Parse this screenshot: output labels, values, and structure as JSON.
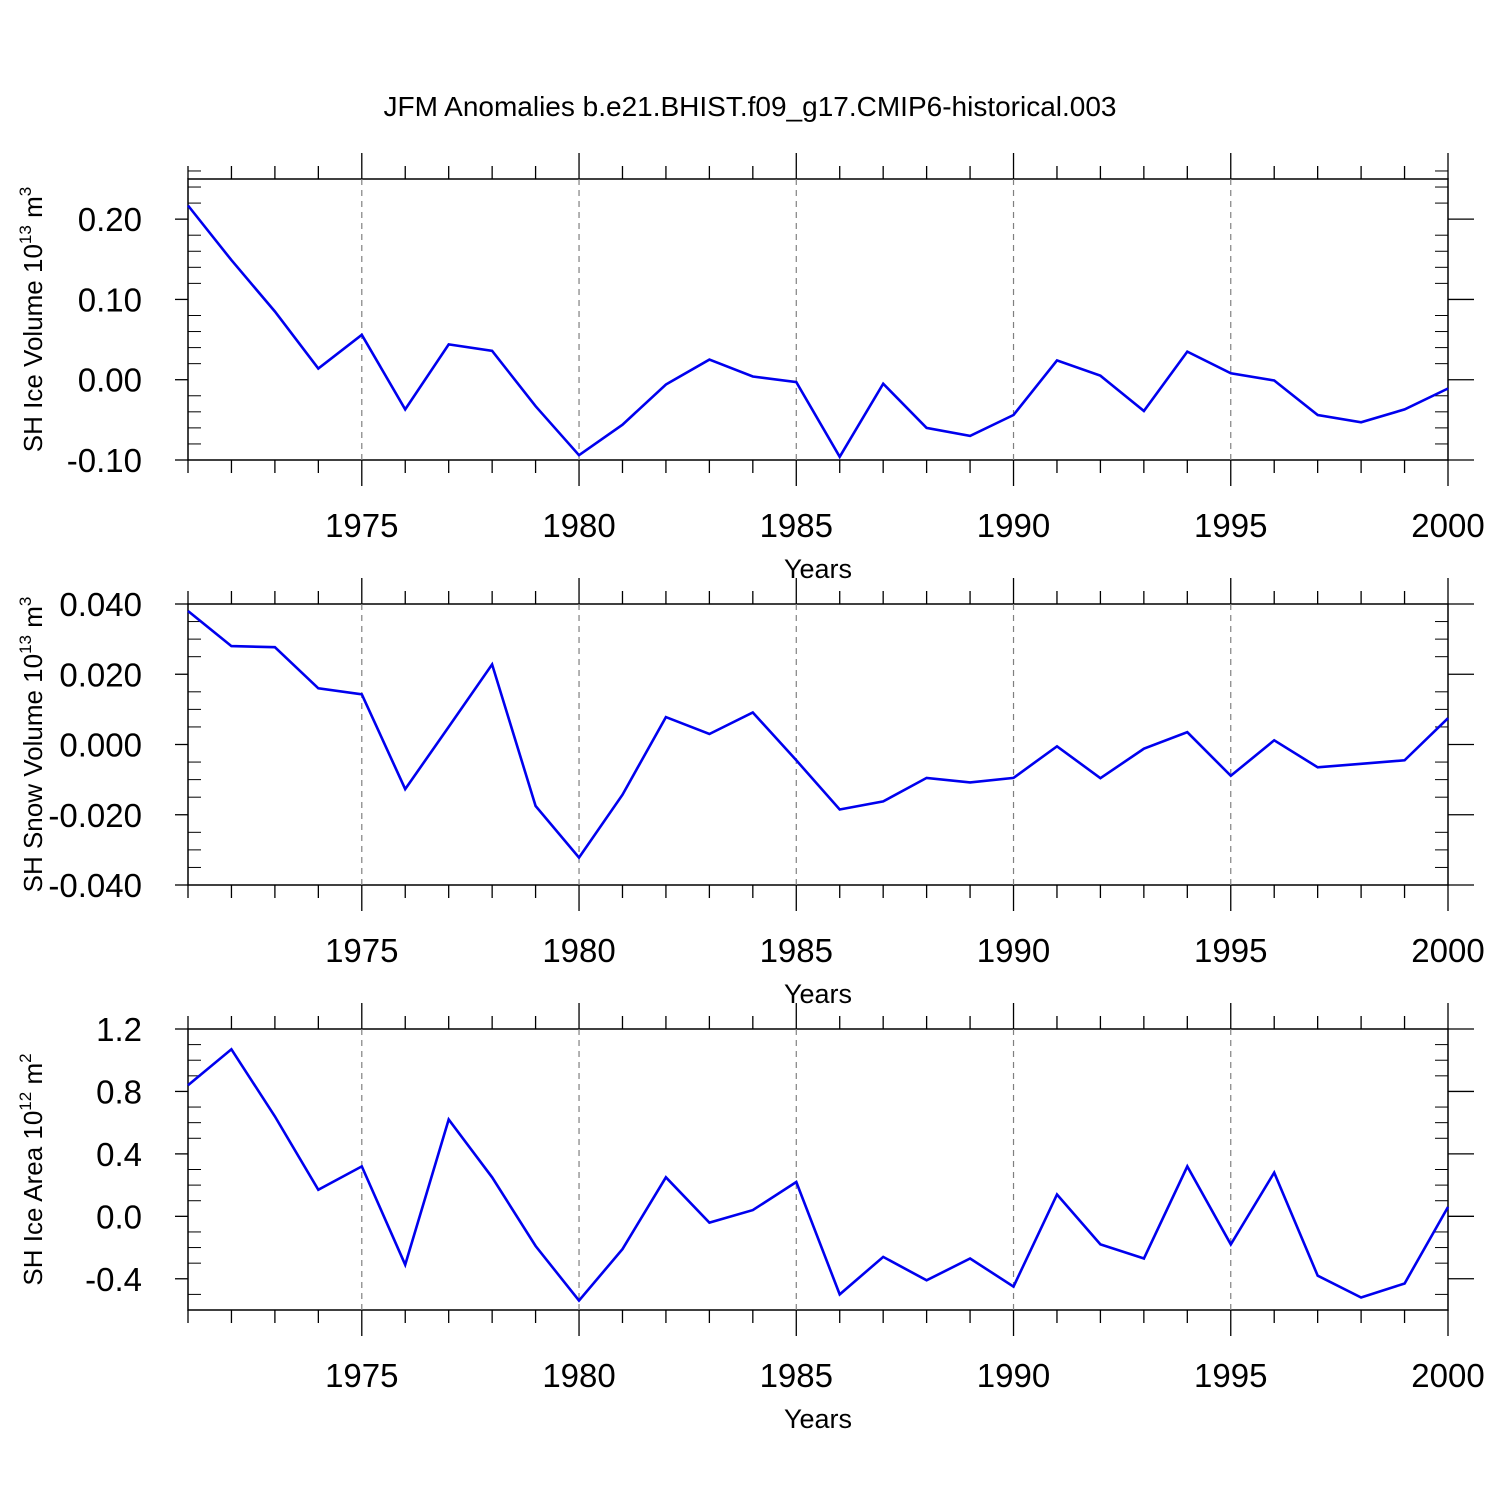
{
  "page_title": "JFM Anomalies b.e21.BHIST.f09_g17.CMIP6-historical.003",
  "colors": {
    "line": "#0000ee",
    "axis": "#000000",
    "grid": "#808080",
    "background": "#ffffff"
  },
  "chart_data": [
    {
      "type": "line",
      "title": "",
      "xlabel": "Years",
      "ylabel_parts": [
        "SH Ice Volume 10",
        "13",
        " m",
        "3"
      ],
      "xlim": [
        1971,
        2000
      ],
      "ylim": [
        -0.1,
        0.25
      ],
      "x_major_ticks": [
        1975,
        1980,
        1985,
        1990,
        1995,
        2000
      ],
      "x_tick_labels": [
        "1975",
        "1980",
        "1985",
        "1990",
        "1995",
        "2000"
      ],
      "y_major_ticks": [
        -0.1,
        0.0,
        0.1,
        0.2
      ],
      "y_tick_labels": [
        "-0.10",
        "0.00",
        "0.10",
        "0.20"
      ],
      "y_minor_step": 0.02,
      "grid": "vertical dashed at major x ticks",
      "series": [
        {
          "name": "SH Ice Volume",
          "x": [
            1971,
            1972,
            1973,
            1974,
            1975,
            1976,
            1977,
            1978,
            1979,
            1980,
            1981,
            1982,
            1983,
            1984,
            1985,
            1986,
            1987,
            1988,
            1989,
            1990,
            1991,
            1992,
            1993,
            1994,
            1995,
            1996,
            1997,
            1998,
            1999,
            2000
          ],
          "values": [
            0.217,
            0.149,
            0.085,
            0.014,
            0.056,
            -0.037,
            0.044,
            0.036,
            -0.033,
            -0.094,
            -0.056,
            -0.006,
            0.025,
            0.004,
            -0.003,
            -0.096,
            -0.005,
            -0.06,
            -0.07,
            -0.044,
            0.024,
            0.005,
            -0.039,
            0.035,
            0.008,
            -0.001,
            -0.044,
            -0.053,
            -0.037,
            -0.011
          ]
        }
      ]
    },
    {
      "type": "line",
      "title": "",
      "xlabel": "Years",
      "ylabel_parts": [
        "SH Snow Volume 10",
        "13",
        " m",
        "3"
      ],
      "xlim": [
        1971,
        2000
      ],
      "ylim": [
        -0.04,
        0.04
      ],
      "x_major_ticks": [
        1975,
        1980,
        1985,
        1990,
        1995,
        2000
      ],
      "x_tick_labels": [
        "1975",
        "1980",
        "1985",
        "1990",
        "1995",
        "2000"
      ],
      "y_major_ticks": [
        -0.04,
        -0.02,
        0.0,
        0.02,
        0.04
      ],
      "y_tick_labels": [
        "-0.040",
        "-0.020",
        "0.000",
        "0.020",
        "0.040"
      ],
      "y_minor_step": 0.005,
      "grid": "vertical dashed at major x ticks",
      "series": [
        {
          "name": "SH Snow Volume",
          "x": [
            1971,
            1972,
            1973,
            1974,
            1975,
            1976,
            1977,
            1978,
            1979,
            1980,
            1981,
            1982,
            1983,
            1984,
            1985,
            1986,
            1987,
            1988,
            1989,
            1990,
            1991,
            1992,
            1993,
            1994,
            1995,
            1996,
            1997,
            1998,
            1999,
            2000
          ],
          "values": [
            0.038,
            0.028,
            0.0277,
            0.016,
            0.0143,
            -0.0127,
            0.005,
            0.0228,
            -0.0175,
            -0.0322,
            -0.0143,
            0.0078,
            0.003,
            0.0091,
            -0.0045,
            -0.0185,
            -0.0162,
            -0.0095,
            -0.0108,
            -0.0095,
            -0.0005,
            -0.0096,
            -0.0012,
            0.0035,
            -0.0089,
            0.0012,
            -0.0065,
            -0.0055,
            -0.0045,
            0.0075
          ]
        }
      ]
    },
    {
      "type": "line",
      "title": "",
      "xlabel": "Years",
      "ylabel_parts": [
        "SH Ice Area 10",
        "12",
        " m",
        "2"
      ],
      "xlim": [
        1971,
        2000
      ],
      "ylim": [
        -0.6,
        1.2
      ],
      "x_major_ticks": [
        1975,
        1980,
        1985,
        1990,
        1995,
        2000
      ],
      "x_tick_labels": [
        "1975",
        "1980",
        "1985",
        "1990",
        "1995",
        "2000"
      ],
      "y_major_ticks": [
        -0.4,
        0.0,
        0.4,
        0.8,
        1.2
      ],
      "y_tick_labels": [
        "-0.4",
        "0.0",
        "0.4",
        "0.8",
        "1.2"
      ],
      "y_minor_step": 0.1,
      "grid": "vertical dashed at major x ticks",
      "series": [
        {
          "name": "SH Ice Area",
          "x": [
            1971,
            1972,
            1973,
            1974,
            1975,
            1976,
            1977,
            1978,
            1979,
            1980,
            1981,
            1982,
            1983,
            1984,
            1985,
            1986,
            1987,
            1988,
            1989,
            1990,
            1991,
            1992,
            1993,
            1994,
            1995,
            1996,
            1997,
            1998,
            1999,
            2000
          ],
          "values": [
            0.84,
            1.07,
            0.64,
            0.17,
            0.32,
            -0.31,
            0.62,
            0.25,
            -0.19,
            -0.54,
            -0.21,
            0.25,
            -0.04,
            0.04,
            0.22,
            -0.5,
            -0.26,
            -0.41,
            -0.27,
            -0.45,
            0.14,
            -0.18,
            -0.27,
            0.32,
            -0.18,
            0.28,
            -0.38,
            -0.52,
            -0.43,
            0.06
          ]
        }
      ]
    }
  ]
}
